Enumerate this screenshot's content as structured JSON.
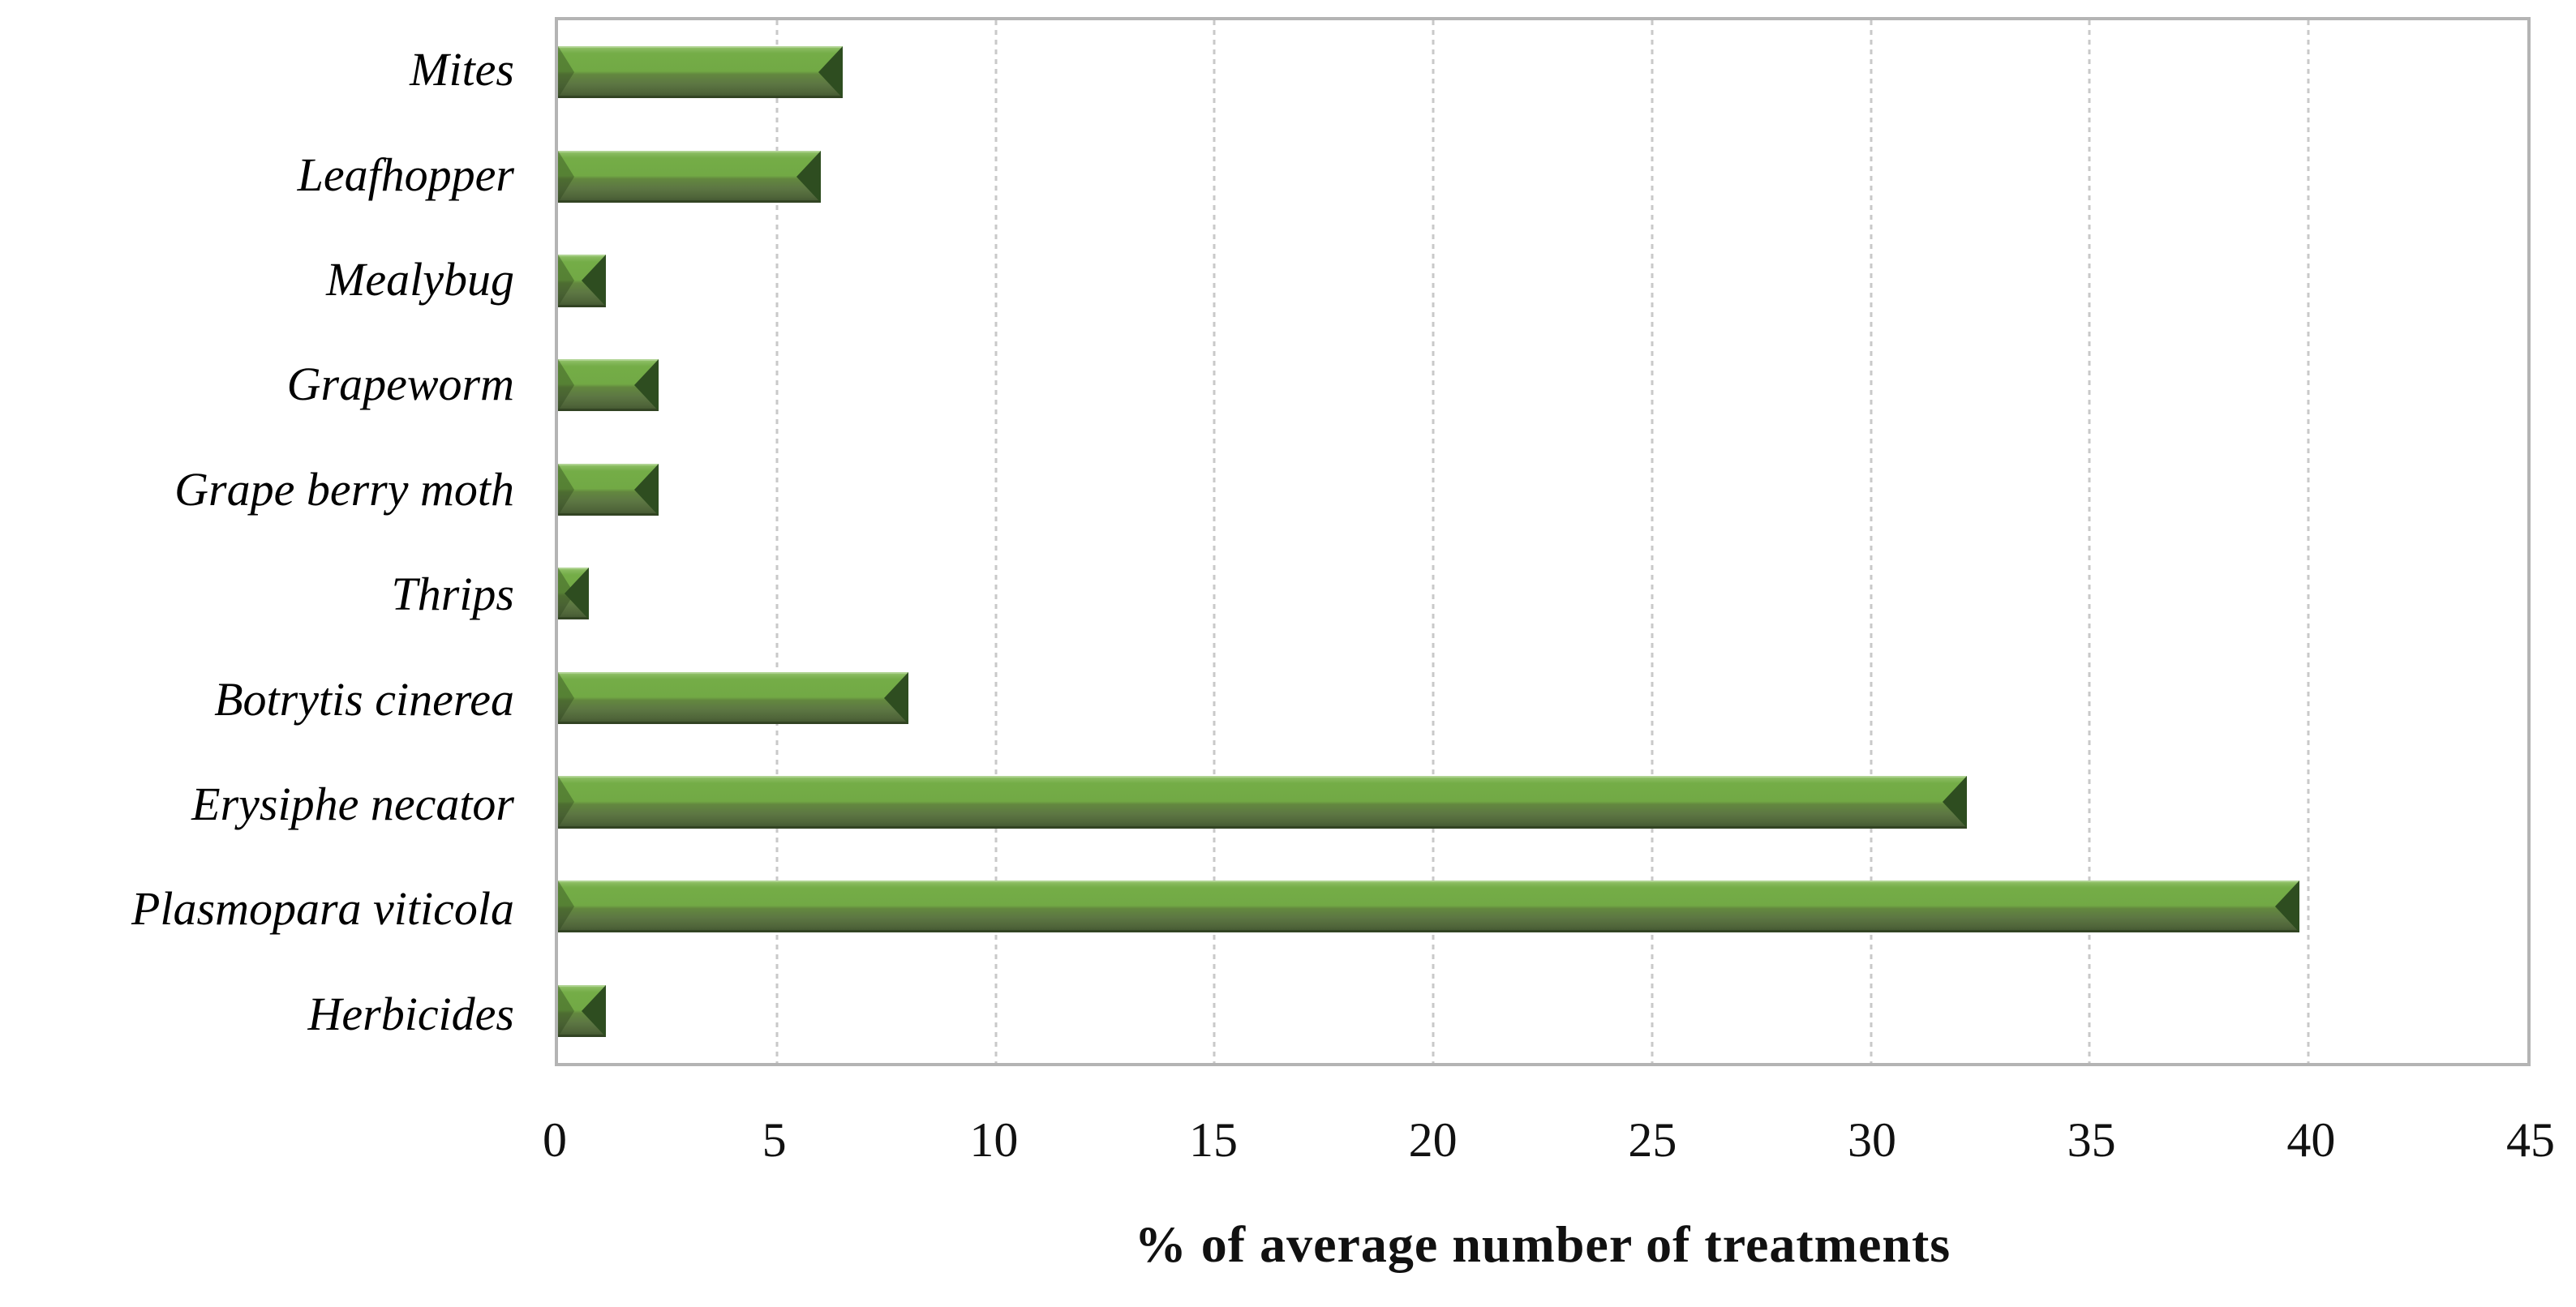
{
  "chart_data": {
    "type": "bar",
    "orientation": "horizontal",
    "categories": [
      "Mites",
      "Leafhopper",
      "Mealybug",
      "Grapeworm",
      "Grape berry moth",
      "Thrips",
      "Botrytis cinerea",
      "Erysiphe necator",
      "Plasmopara viticola",
      "Herbicides"
    ],
    "values": [
      6.5,
      6.0,
      1.1,
      2.3,
      2.3,
      0.7,
      8.0,
      32.2,
      39.8,
      1.1
    ],
    "title": "",
    "xlabel": "% of average number of treatments",
    "ylabel": "",
    "xlim": [
      0,
      45
    ],
    "xticks": [
      0,
      5,
      10,
      15,
      20,
      25,
      30,
      35,
      40,
      45
    ],
    "grid": true,
    "legend": "none",
    "bar_style": "3d-bevel",
    "colors": {
      "bar_face": "#72a945",
      "bar_highlight": "#9ac873",
      "bar_shadow": "#405430",
      "bar_end_cap": "#2e4d20",
      "gridline": "#c9c9c9",
      "plot_border": "#b4b4b4",
      "text": "#111111",
      "background": "#ffffff"
    }
  }
}
